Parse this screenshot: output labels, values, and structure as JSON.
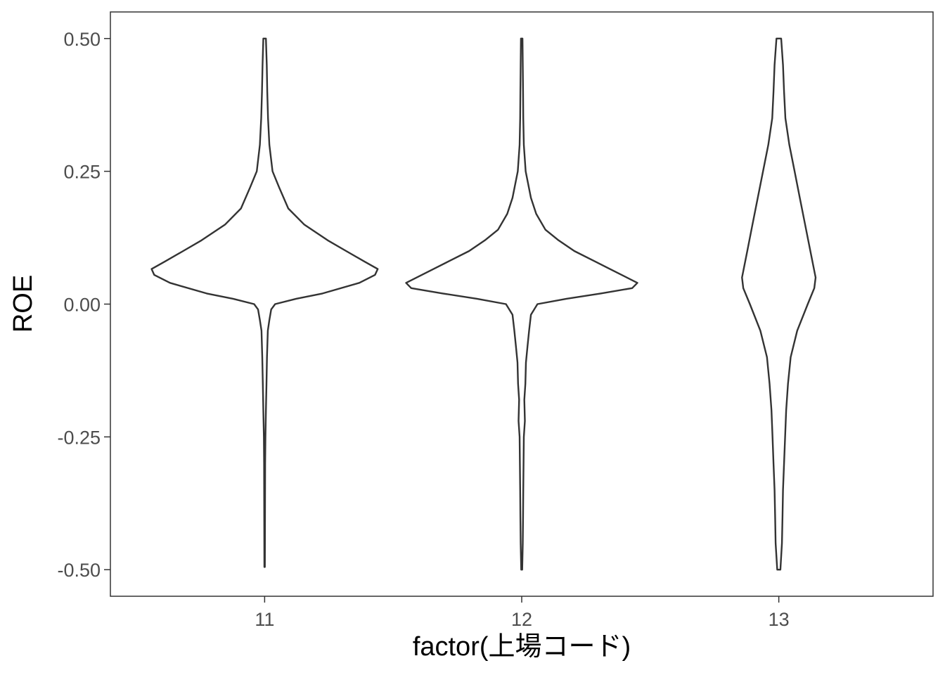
{
  "chart_data": {
    "type": "violin",
    "xlabel": "factor(上場コード)",
    "ylabel": "ROE",
    "ylim": [
      -0.55,
      0.55
    ],
    "y_ticks": [
      {
        "value": 0.5,
        "label": "0.50"
      },
      {
        "value": 0.25,
        "label": "0.25"
      },
      {
        "value": 0.0,
        "label": "0.00"
      },
      {
        "value": -0.25,
        "label": "-0.25"
      },
      {
        "value": -0.5,
        "label": "-0.50"
      }
    ],
    "categories": [
      "11",
      "12",
      "13"
    ],
    "grid": false,
    "line_color": "#333333",
    "violins": [
      {
        "category": "11",
        "y_range": [
          -0.495,
          0.5
        ],
        "profile": [
          [
            0.5,
            0.005
          ],
          [
            0.45,
            0.008
          ],
          [
            0.4,
            0.01
          ],
          [
            0.35,
            0.013
          ],
          [
            0.3,
            0.018
          ],
          [
            0.25,
            0.03
          ],
          [
            0.22,
            0.055
          ],
          [
            0.18,
            0.09
          ],
          [
            0.15,
            0.15
          ],
          [
            0.12,
            0.24
          ],
          [
            0.1,
            0.31
          ],
          [
            0.08,
            0.38
          ],
          [
            0.066,
            0.43
          ],
          [
            0.055,
            0.42
          ],
          [
            0.04,
            0.36
          ],
          [
            0.02,
            0.22
          ],
          [
            0.01,
            0.12
          ],
          [
            0.0,
            0.04
          ],
          [
            -0.01,
            0.025
          ],
          [
            -0.03,
            0.018
          ],
          [
            -0.05,
            0.012
          ],
          [
            -0.1,
            0.009
          ],
          [
            -0.15,
            0.007
          ],
          [
            -0.2,
            0.005
          ],
          [
            -0.25,
            0.003
          ],
          [
            -0.3,
            0.002
          ],
          [
            -0.4,
            0.0015
          ],
          [
            -0.495,
            0.001
          ]
        ]
      },
      {
        "category": "12",
        "y_range": [
          -0.5,
          0.5
        ],
        "profile": [
          [
            0.5,
            0.003
          ],
          [
            0.45,
            0.004
          ],
          [
            0.4,
            0.005
          ],
          [
            0.35,
            0.006
          ],
          [
            0.3,
            0.008
          ],
          [
            0.25,
            0.015
          ],
          [
            0.2,
            0.035
          ],
          [
            0.17,
            0.055
          ],
          [
            0.14,
            0.09
          ],
          [
            0.12,
            0.14
          ],
          [
            0.1,
            0.2
          ],
          [
            0.08,
            0.28
          ],
          [
            0.06,
            0.36
          ],
          [
            0.04,
            0.44
          ],
          [
            0.03,
            0.42
          ],
          [
            0.02,
            0.3
          ],
          [
            0.01,
            0.17
          ],
          [
            0.0,
            0.06
          ],
          [
            -0.02,
            0.035
          ],
          [
            -0.05,
            0.028
          ],
          [
            -0.08,
            0.022
          ],
          [
            -0.11,
            0.016
          ],
          [
            -0.15,
            0.014
          ],
          [
            -0.18,
            0.01
          ],
          [
            -0.22,
            0.012
          ],
          [
            -0.25,
            0.008
          ],
          [
            -0.3,
            0.007
          ],
          [
            -0.35,
            0.006
          ],
          [
            -0.4,
            0.005
          ],
          [
            -0.45,
            0.004
          ],
          [
            -0.5,
            0.002
          ]
        ]
      },
      {
        "category": "13",
        "y_range": [
          -0.5,
          0.5
        ],
        "profile": [
          [
            0.5,
            0.009
          ],
          [
            0.45,
            0.016
          ],
          [
            0.4,
            0.02
          ],
          [
            0.35,
            0.025
          ],
          [
            0.3,
            0.04
          ],
          [
            0.25,
            0.06
          ],
          [
            0.2,
            0.08
          ],
          [
            0.15,
            0.1
          ],
          [
            0.1,
            0.12
          ],
          [
            0.05,
            0.14
          ],
          [
            0.03,
            0.135
          ],
          [
            0.0,
            0.11
          ],
          [
            -0.05,
            0.07
          ],
          [
            -0.1,
            0.045
          ],
          [
            -0.15,
            0.035
          ],
          [
            -0.2,
            0.028
          ],
          [
            -0.25,
            0.024
          ],
          [
            -0.3,
            0.02
          ],
          [
            -0.35,
            0.016
          ],
          [
            -0.4,
            0.014
          ],
          [
            -0.45,
            0.012
          ],
          [
            -0.5,
            0.006
          ]
        ]
      }
    ]
  }
}
